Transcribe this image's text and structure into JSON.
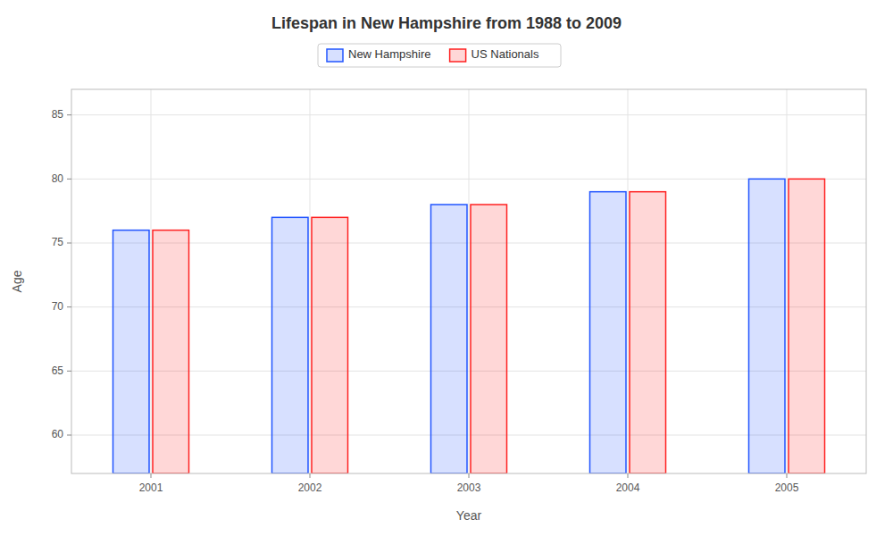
{
  "chart_data": {
    "type": "bar",
    "title": "Lifespan in New Hampshire from 1988 to 2009",
    "x_label": "Year",
    "y_label": "Age",
    "categories": [
      "2001",
      "2002",
      "2003",
      "2004",
      "2005"
    ],
    "series": [
      {
        "name": "New Hampshire",
        "color": "#2255ff",
        "values": [
          76,
          77,
          78,
          79,
          80
        ]
      },
      {
        "name": "US Nationals",
        "color": "#ff2222",
        "values": [
          76,
          77,
          78,
          79,
          80
        ]
      }
    ],
    "ylim": [
      57,
      87
    ],
    "yticks": [
      60,
      65,
      70,
      75,
      80,
      85
    ],
    "grid": true,
    "legend": "top"
  }
}
